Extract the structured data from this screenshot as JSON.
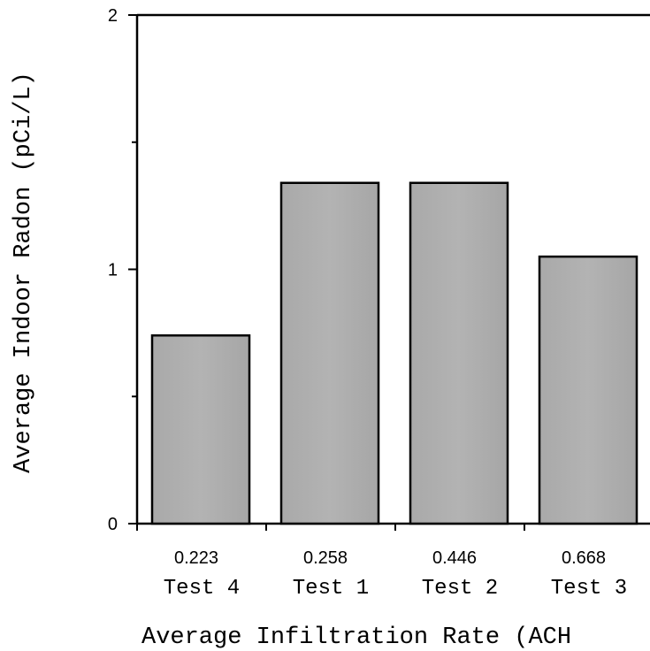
{
  "chart_data": {
    "type": "bar",
    "categories": [
      "Test 4",
      "Test 1",
      "Test 2",
      "Test 3"
    ],
    "rate_labels": [
      "0.223",
      "0.258",
      "0.446",
      "0.668"
    ],
    "values": [
      0.74,
      1.34,
      1.34,
      1.05
    ],
    "ylabel": "Average Indoor Radon (pCi/L)",
    "xlabel": "Average Infiltration Rate (ACH",
    "ylim": [
      0,
      2
    ],
    "y_ticks": [
      "0",
      "1",
      "2"
    ],
    "grid": false,
    "bar_color": "#b3b3b3",
    "bar_edge_color": "#000000"
  }
}
